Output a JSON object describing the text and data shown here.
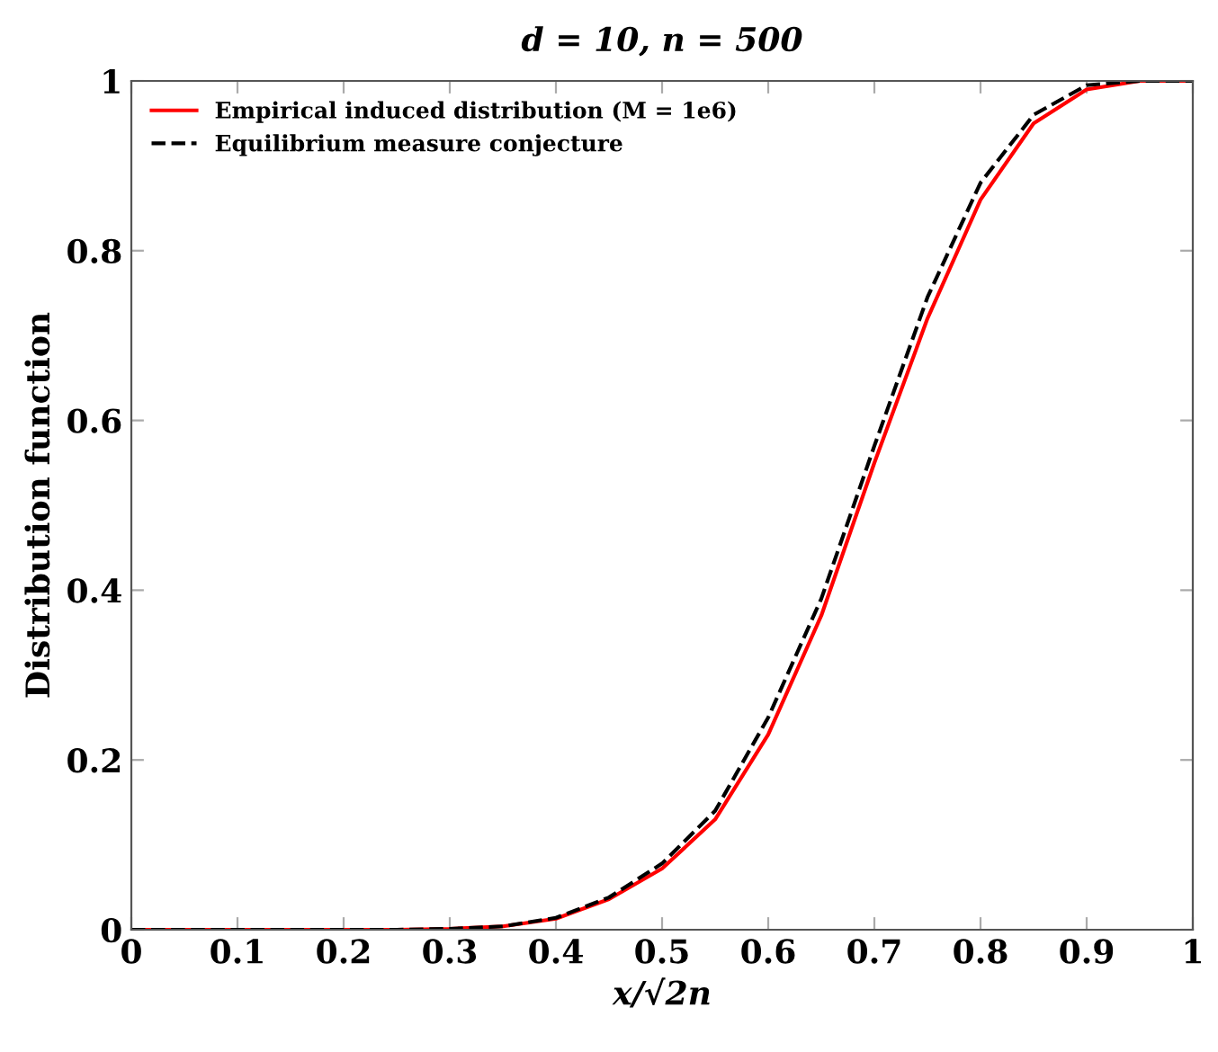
{
  "chart_data": {
    "type": "line",
    "title": "d = 10, n = 500",
    "xlabel": "x/√2n",
    "ylabel": "Distribution function",
    "x": [
      0,
      0.1,
      0.2,
      0.25,
      0.3,
      0.35,
      0.4,
      0.45,
      0.5,
      0.55,
      0.6,
      0.65,
      0.7,
      0.75,
      0.8,
      0.85,
      0.9,
      0.95,
      1
    ],
    "series": [
      {
        "name": "Empirical induced distribution (M = 1e6)",
        "color": "#ff0000",
        "line_style": "solid",
        "values": [
          0,
          0,
          0,
          0,
          0.001,
          0.004,
          0.013,
          0.036,
          0.072,
          0.13,
          0.23,
          0.37,
          0.55,
          0.72,
          0.86,
          0.95,
          0.99,
          1,
          1
        ]
      },
      {
        "name": "Equilibrium measure conjecture",
        "color": "#000000",
        "line_style": "dashed",
        "values": [
          0,
          0,
          0,
          0,
          0.001,
          0.004,
          0.014,
          0.038,
          0.078,
          0.14,
          0.25,
          0.39,
          0.57,
          0.745,
          0.88,
          0.96,
          0.995,
          1,
          1
        ]
      }
    ],
    "xlim": [
      0,
      1
    ],
    "ylim": [
      0,
      1
    ],
    "xticks": [
      0,
      0.1,
      0.2,
      0.3,
      0.4,
      0.5,
      0.6,
      0.7,
      0.8,
      0.9,
      1
    ],
    "yticks": [
      0,
      0.2,
      0.4,
      0.6,
      0.8,
      1
    ],
    "grid": false,
    "legend": "top left",
    "marker": "none"
  }
}
